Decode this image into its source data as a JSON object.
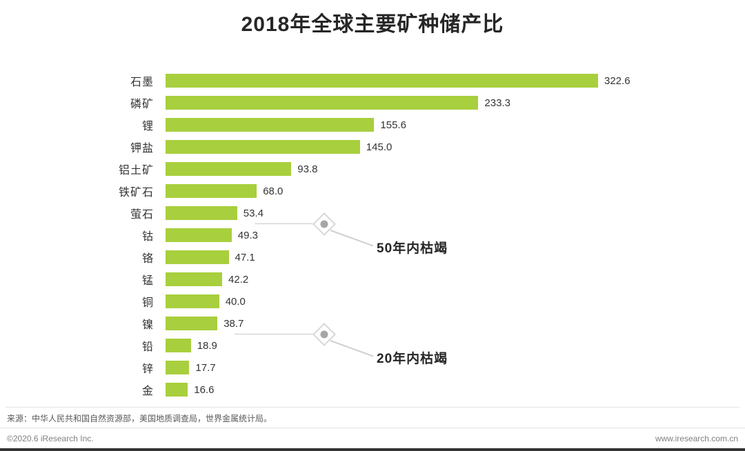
{
  "chart_data": {
    "type": "bar",
    "orientation": "horizontal",
    "title": "2018年全球主要矿种储产比",
    "categories": [
      "石墨",
      "磷矿",
      "锂",
      "钾盐",
      "铝土矿",
      "铁矿石",
      "萤石",
      "钴",
      "铬",
      "锰",
      "铜",
      "镍",
      "铅",
      "锌",
      "金"
    ],
    "values": [
      322.6,
      233.3,
      155.6,
      145.0,
      93.8,
      68.0,
      53.4,
      49.3,
      47.1,
      42.2,
      40.0,
      38.7,
      18.9,
      17.7,
      16.6
    ],
    "value_labels": [
      "322.6",
      "233.3",
      "155.6",
      "145.0",
      "93.8",
      "68.0",
      "53.4",
      "49.3",
      "47.1",
      "42.2",
      "40.0",
      "38.7",
      "18.9",
      "17.7",
      "16.6"
    ],
    "bar_color": "#a8cf3d",
    "xlim": [
      0,
      340
    ],
    "legend": "none",
    "grid": "off",
    "annotations": [
      {
        "label": "50年内枯竭",
        "after_row": 7
      },
      {
        "label": "20年内枯竭",
        "after_row": 12
      }
    ]
  },
  "footer": {
    "source": "来源：中华人民共和国自然资源部，美国地质调查局，世界金属统计局。",
    "copyright": "©2020.6 iResearch Inc.",
    "website": "www.iresearch.com.cn"
  }
}
